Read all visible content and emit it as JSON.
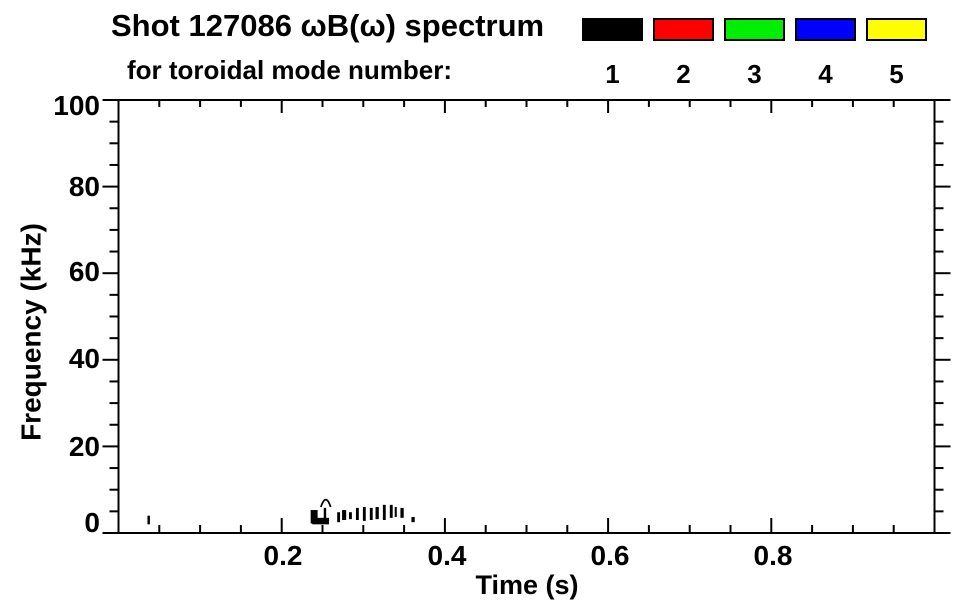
{
  "title": {
    "line1": "Shot 127086 ωB(ω) spectrum",
    "line2": "for toroidal mode number:"
  },
  "legend": {
    "modes": [
      {
        "label": "1",
        "color": "#000000"
      },
      {
        "label": "2",
        "color": "#ff0000"
      },
      {
        "label": "3",
        "color": "#00ee00"
      },
      {
        "label": "4",
        "color": "#0000ff"
      },
      {
        "label": "5",
        "color": "#ffff00"
      }
    ]
  },
  "chart_data": {
    "type": "scatter",
    "title": "Shot 127086 ωB(ω) spectrum for toroidal mode number: 1 2 3 4 5",
    "xlabel": "Time (s)",
    "ylabel": "Frequency (kHz)",
    "xlim": [
      0,
      1.0
    ],
    "ylim": [
      0,
      100
    ],
    "grid": false,
    "xticks_major": [
      0.2,
      0.4,
      0.6,
      0.8
    ],
    "xtick_labels": [
      "0.2",
      "0.4",
      "0.6",
      "0.8"
    ],
    "xtick_minor_step": 0.05,
    "yticks_major": [
      0,
      20,
      40,
      60,
      80,
      100
    ],
    "ytick_labels": [
      "0",
      "20",
      "40",
      "60",
      "80",
      "100"
    ],
    "ytick_minor_step": 5,
    "series": [
      {
        "name": "toroidal mode n=1",
        "color": "#000000",
        "note": "short low-frequency bursts, f ≈ 2–8 kHz, t ≈ 0.04 s and 0.24–0.36 s",
        "dashes_t0_t1_f0_f1": [
          [
            0.0355,
            0.0385,
            2.0,
            4.0
          ],
          [
            0.2355,
            0.244,
            2.2,
            5.3
          ],
          [
            0.2375,
            0.258,
            2.0,
            3.5
          ],
          [
            0.2515,
            0.2545,
            2.2,
            5.8
          ],
          [
            0.268,
            0.2715,
            2.5,
            4.8
          ],
          [
            0.274,
            0.279,
            3.0,
            5.3
          ],
          [
            0.2825,
            0.286,
            3.2,
            4.8
          ],
          [
            0.291,
            0.2945,
            3.0,
            5.8
          ],
          [
            0.2995,
            0.303,
            2.8,
            6.0
          ],
          [
            0.308,
            0.3115,
            3.0,
            5.8
          ],
          [
            0.315,
            0.319,
            3.2,
            6.0
          ],
          [
            0.324,
            0.3275,
            3.0,
            6.5
          ],
          [
            0.3325,
            0.336,
            3.5,
            6.5
          ],
          [
            0.3385,
            0.341,
            3.7,
            6.0
          ],
          [
            0.3455,
            0.3495,
            3.5,
            5.8
          ],
          [
            0.359,
            0.363,
            2.5,
            3.7
          ]
        ],
        "arcs_t0_t1_f0_fpeak": [
          [
            0.248,
            0.26,
            6.0,
            8.5
          ]
        ]
      },
      {
        "name": "toroidal mode n=2",
        "color": "#ff0000",
        "dashes_t0_t1_f0_f1": []
      },
      {
        "name": "toroidal mode n=3",
        "color": "#00ee00",
        "dashes_t0_t1_f0_f1": []
      },
      {
        "name": "toroidal mode n=4",
        "color": "#0000ff",
        "dashes_t0_t1_f0_f1": []
      },
      {
        "name": "toroidal mode n=5",
        "color": "#ffff00",
        "dashes_t0_t1_f0_f1": []
      }
    ]
  }
}
